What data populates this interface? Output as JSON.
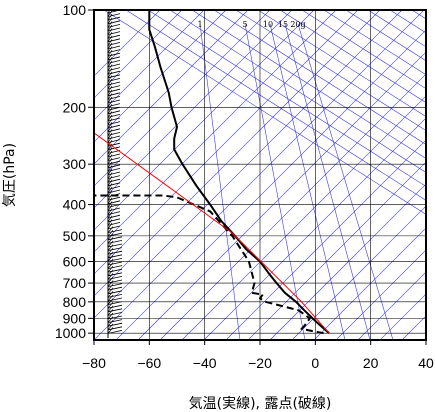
{
  "chart_data": {
    "type": "line",
    "subtype": "skew-t",
    "xlabel": "気温(実線), 露点(破線)",
    "ylabel": "気圧(hPa)",
    "xlim": [
      -80,
      40
    ],
    "ylim": [
      1050,
      100
    ],
    "y_scale": "log",
    "x_ticks": [
      -80,
      -60,
      -40,
      -20,
      0,
      20,
      40
    ],
    "x_tick_labels": [
      "−80",
      "−60",
      "−40",
      "−20",
      "0",
      "20",
      "40"
    ],
    "y_ticks": [
      100,
      200,
      300,
      400,
      500,
      600,
      700,
      800,
      900,
      1000
    ],
    "y_tick_labels": [
      "100",
      "200",
      "300",
      "400",
      "500",
      "600",
      "700",
      "800",
      "900",
      "1000"
    ],
    "mixing_ratio_labels": [
      "1",
      "5",
      "10",
      "15",
      "20g"
    ],
    "grid": true,
    "series": [
      {
        "style": "solid",
        "color": "#000000",
        "points": [
          [
            5,
            1000
          ],
          [
            2,
            950
          ],
          [
            -1,
            900
          ],
          [
            -4,
            850
          ],
          [
            -7,
            800
          ],
          [
            -11,
            750
          ],
          [
            -14,
            700
          ],
          [
            -17,
            650
          ],
          [
            -20,
            600
          ],
          [
            -25,
            550
          ],
          [
            -29,
            500
          ],
          [
            -34,
            450
          ],
          [
            -38,
            400
          ],
          [
            -43,
            350
          ],
          [
            -48,
            300
          ],
          [
            -51,
            270
          ],
          [
            -51,
            250
          ],
          [
            -50,
            230
          ],
          [
            -52,
            200
          ],
          [
            -53,
            180
          ],
          [
            -56,
            150
          ],
          [
            -58,
            130
          ],
          [
            -60,
            115
          ],
          [
            -60,
            100
          ]
        ]
      },
      {
        "style": "dashed",
        "color": "#000000",
        "points": [
          [
            3,
            1000
          ],
          [
            -5,
            970
          ],
          [
            -4,
            950
          ],
          [
            -2,
            900
          ],
          [
            -6,
            850
          ],
          [
            -18,
            800
          ],
          [
            -20,
            780
          ],
          [
            -19,
            760
          ],
          [
            -23,
            750
          ],
          [
            -22,
            700
          ],
          [
            -24,
            600
          ],
          [
            -30,
            500
          ],
          [
            -38,
            420
          ],
          [
            -50,
            380
          ],
          [
            -55,
            375
          ],
          [
            -80,
            375
          ]
        ]
      },
      {
        "style": "solid",
        "color": "#ff0000",
        "points": [
          [
            -80,
            240
          ],
          [
            -30,
            490
          ],
          [
            -5,
            800
          ],
          [
            5,
            1000
          ]
        ]
      }
    ]
  }
}
